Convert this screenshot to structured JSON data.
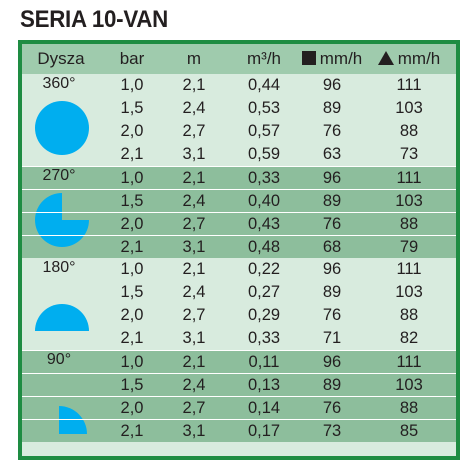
{
  "title": "SERIA 10-VAN",
  "colors": {
    "border": "#1e8c42",
    "light_band": "#d8ebde",
    "dark_band": "#8dbe9c",
    "header": "#9fcbad",
    "nozzle": "#00aeef"
  },
  "headers": {
    "dysza": "Dysza",
    "bar": "bar",
    "m": "m",
    "m3h": "m³/h",
    "mmh_square": "mm/h",
    "mmh_triangle": "mm/h"
  },
  "groups": [
    {
      "label": "360°",
      "nozzle_icon": "full-circle-icon",
      "rows": [
        {
          "bar": "1,0",
          "m": "2,1",
          "m3h": "0,44",
          "mmh_square": "96",
          "mmh_triangle": "111"
        },
        {
          "bar": "1,5",
          "m": "2,4",
          "m3h": "0,53",
          "mmh_square": "89",
          "mmh_triangle": "103"
        },
        {
          "bar": "2,0",
          "m": "2,7",
          "m3h": "0,57",
          "mmh_square": "76",
          "mmh_triangle": "88"
        },
        {
          "bar": "2,1",
          "m": "3,1",
          "m3h": "0,59",
          "mmh_square": "63",
          "mmh_triangle": "73"
        }
      ]
    },
    {
      "label": "270°",
      "nozzle_icon": "three-quarter-circle-icon",
      "rows": [
        {
          "bar": "1,0",
          "m": "2,1",
          "m3h": "0,33",
          "mmh_square": "96",
          "mmh_triangle": "111"
        },
        {
          "bar": "1,5",
          "m": "2,4",
          "m3h": "0,40",
          "mmh_square": "89",
          "mmh_triangle": "103"
        },
        {
          "bar": "2,0",
          "m": "2,7",
          "m3h": "0,43",
          "mmh_square": "76",
          "mmh_triangle": "88"
        },
        {
          "bar": "2,1",
          "m": "3,1",
          "m3h": "0,48",
          "mmh_square": "68",
          "mmh_triangle": "79"
        }
      ]
    },
    {
      "label": "180°",
      "nozzle_icon": "half-circle-icon",
      "rows": [
        {
          "bar": "1,0",
          "m": "2,1",
          "m3h": "0,22",
          "mmh_square": "96",
          "mmh_triangle": "111"
        },
        {
          "bar": "1,5",
          "m": "2,4",
          "m3h": "0,27",
          "mmh_square": "89",
          "mmh_triangle": "103"
        },
        {
          "bar": "2,0",
          "m": "2,7",
          "m3h": "0,29",
          "mmh_square": "76",
          "mmh_triangle": "88"
        },
        {
          "bar": "2,1",
          "m": "3,1",
          "m3h": "0,33",
          "mmh_square": "71",
          "mmh_triangle": "82"
        }
      ]
    },
    {
      "label": "90°",
      "nozzle_icon": "quarter-circle-icon",
      "rows": [
        {
          "bar": "1,0",
          "m": "2,1",
          "m3h": "0,11",
          "mmh_square": "96",
          "mmh_triangle": "111"
        },
        {
          "bar": "1,5",
          "m": "2,4",
          "m3h": "0,13",
          "mmh_square": "89",
          "mmh_triangle": "103"
        },
        {
          "bar": "2,0",
          "m": "2,7",
          "m3h": "0,14",
          "mmh_square": "76",
          "mmh_triangle": "88"
        },
        {
          "bar": "2,1",
          "m": "3,1",
          "m3h": "0,17",
          "mmh_square": "73",
          "mmh_triangle": "85"
        }
      ]
    }
  ]
}
